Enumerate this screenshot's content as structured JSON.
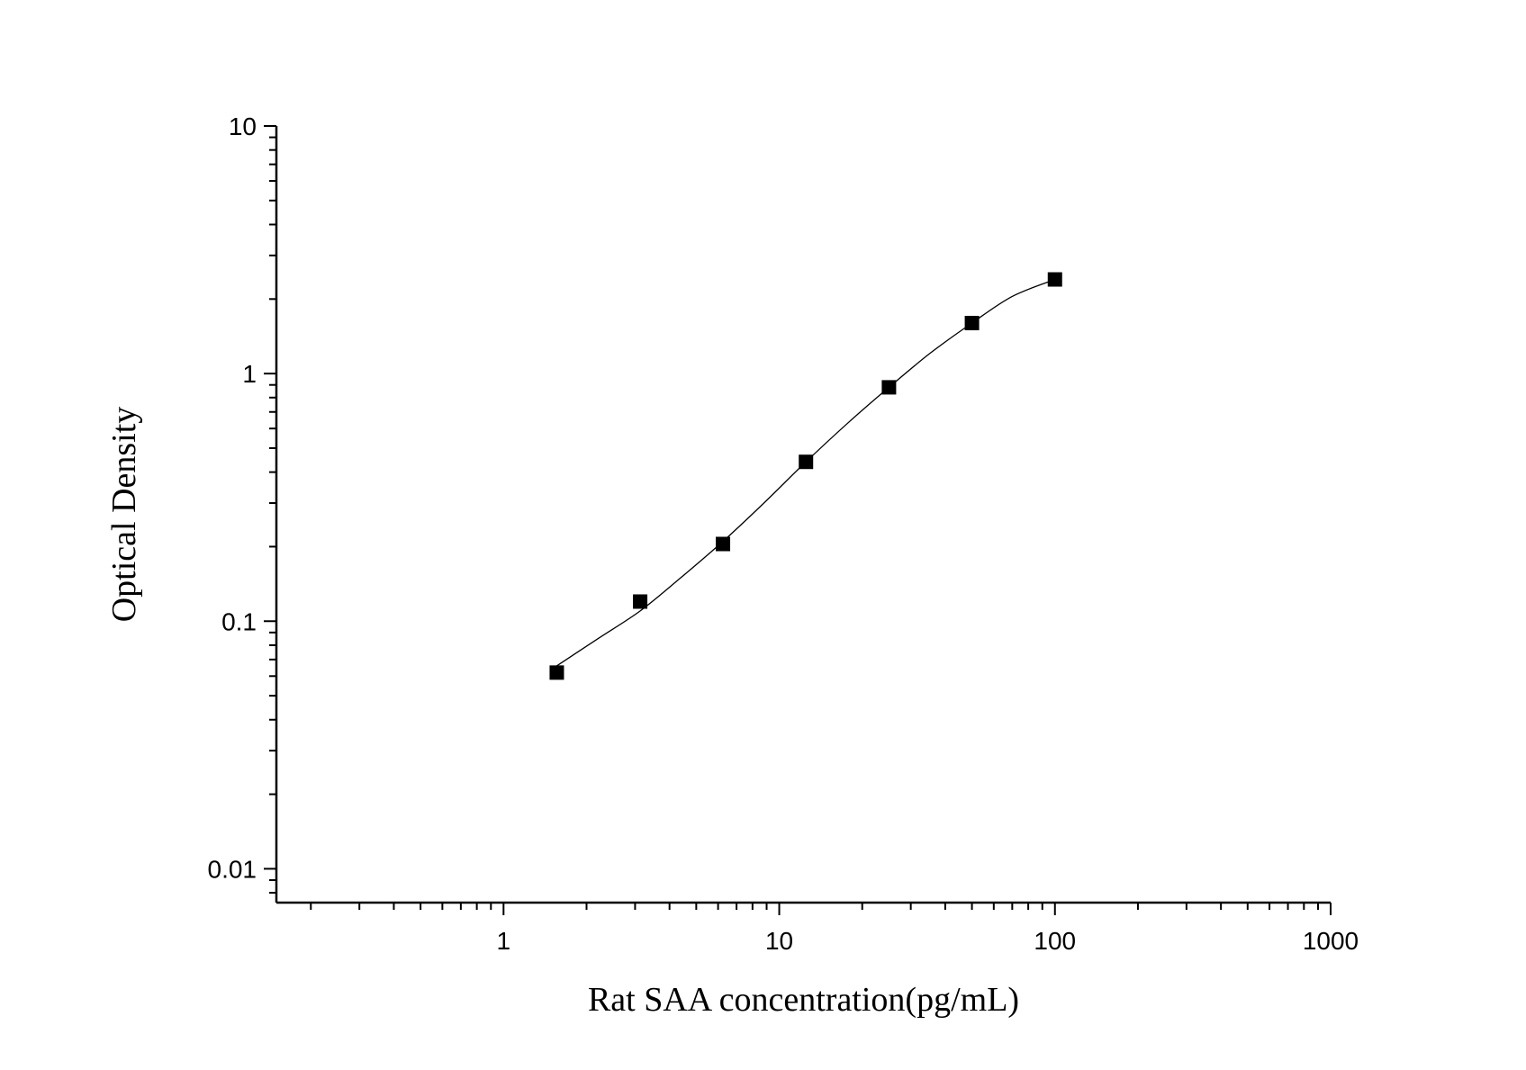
{
  "chart_data": {
    "type": "scatter",
    "xlabel": "Rat SAA concentration(pg/mL)",
    "ylabel": "Optical Density",
    "x_scale": "log",
    "y_scale": "log",
    "xlim": [
      0.15,
      1000
    ],
    "ylim": [
      0.0073,
      10
    ],
    "x_ticks": [
      {
        "value": 1,
        "label": "1"
      },
      {
        "value": 10,
        "label": "10"
      },
      {
        "value": 100,
        "label": "100"
      },
      {
        "value": 1000,
        "label": "1000"
      }
    ],
    "y_ticks": [
      {
        "value": 0.01,
        "label": "0.01"
      },
      {
        "value": 0.1,
        "label": "0.1"
      },
      {
        "value": 1,
        "label": "1"
      },
      {
        "value": 10,
        "label": "10"
      }
    ],
    "grid": false,
    "series": [
      {
        "marker": "square",
        "color": "#000000",
        "points": [
          {
            "x": 1.56,
            "y": 0.062
          },
          {
            "x": 3.13,
            "y": 0.12
          },
          {
            "x": 6.25,
            "y": 0.205
          },
          {
            "x": 12.5,
            "y": 0.44
          },
          {
            "x": 25,
            "y": 0.88
          },
          {
            "x": 50,
            "y": 1.6
          },
          {
            "x": 100,
            "y": 2.4
          }
        ]
      }
    ],
    "fit_curve": {
      "color": "#000000",
      "points": [
        {
          "x": 1.56,
          "y": 0.066
        },
        {
          "x": 2.2,
          "y": 0.085
        },
        {
          "x": 3.13,
          "y": 0.11
        },
        {
          "x": 4.4,
          "y": 0.15
        },
        {
          "x": 6.25,
          "y": 0.21
        },
        {
          "x": 8.8,
          "y": 0.3
        },
        {
          "x": 12.5,
          "y": 0.44
        },
        {
          "x": 17.7,
          "y": 0.63
        },
        {
          "x": 25,
          "y": 0.88
        },
        {
          "x": 35,
          "y": 1.2
        },
        {
          "x": 50,
          "y": 1.6
        },
        {
          "x": 70,
          "y": 2.05
        },
        {
          "x": 100,
          "y": 2.4
        }
      ]
    }
  }
}
